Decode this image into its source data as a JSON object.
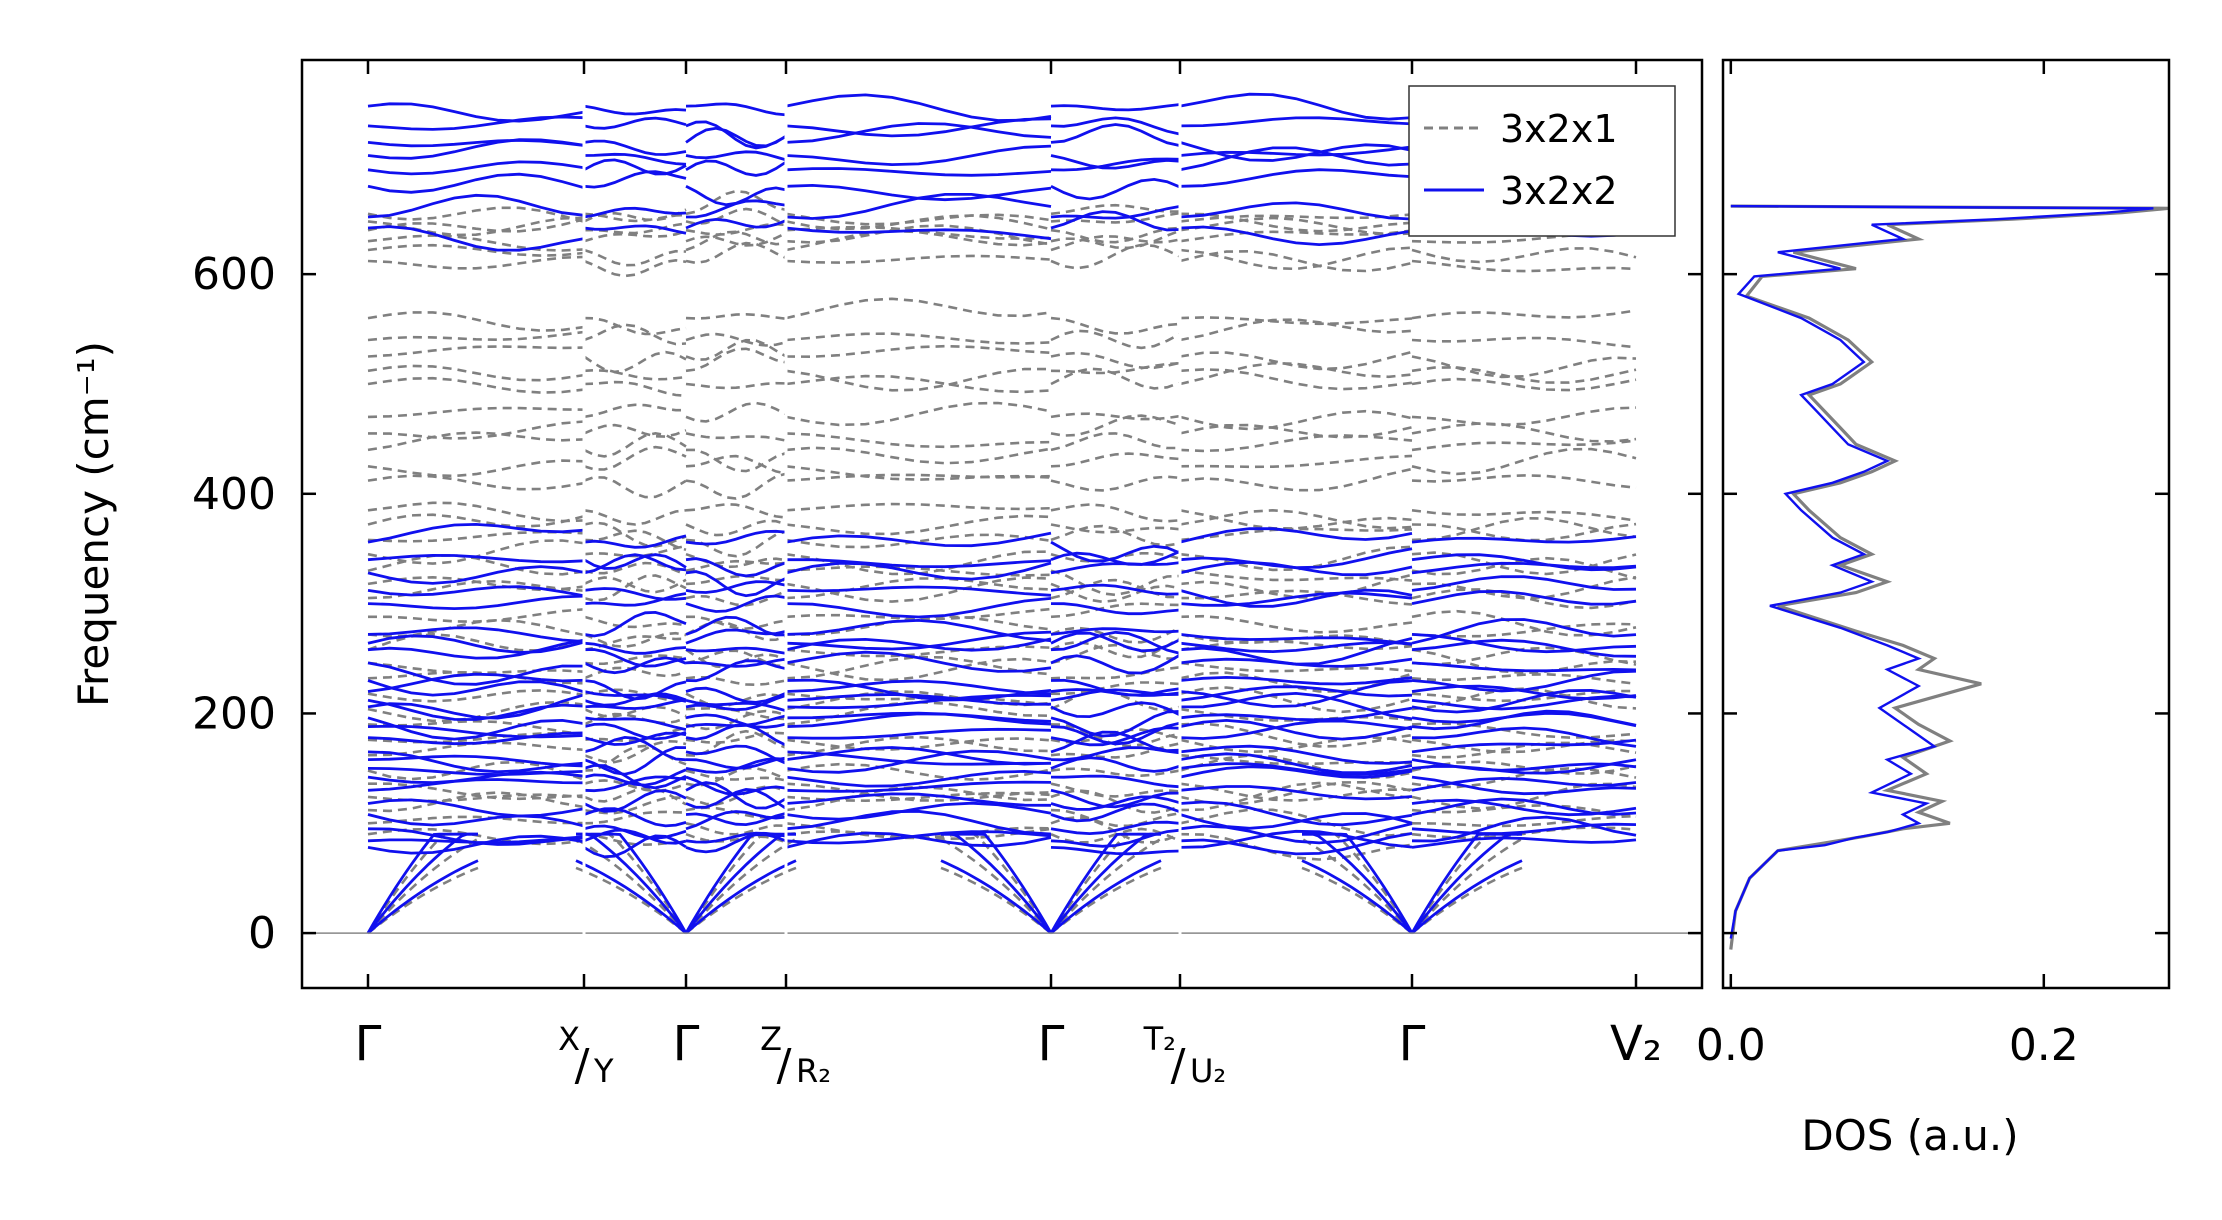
{
  "chart_data": [
    {
      "type": "line",
      "panel": "band-structure",
      "ylabel": "Frequency (cm⁻¹)",
      "ylim": [
        -50,
        795
      ],
      "yticks": [
        0,
        200,
        400,
        600
      ],
      "path_segments": [
        {
          "start": "Γ",
          "end": "X"
        },
        {
          "start": "Y",
          "end": "Γ"
        },
        {
          "start": "Γ",
          "end": "Z"
        },
        {
          "start": "R₂",
          "end": "Γ"
        },
        {
          "start": "Γ",
          "end": "T₂"
        },
        {
          "start": "U₂",
          "end": "Γ"
        },
        {
          "start": "Γ",
          "end": "V₂"
        }
      ],
      "xticks": [
        {
          "label": "Γ"
        },
        {
          "label": "X/Y",
          "top": "X",
          "bottom": "Y"
        },
        {
          "label": "Γ"
        },
        {
          "label": "Z/R₂",
          "top": "Z",
          "bottom": "R₂"
        },
        {
          "label": "Γ"
        },
        {
          "label": "T₂/U₂",
          "top": "T₂",
          "bottom": "U₂"
        },
        {
          "label": "Γ"
        },
        {
          "label": "V₂"
        }
      ],
      "legend": {
        "placement": "top-right",
        "entries": [
          {
            "name": "3x2x1",
            "style": "dashed",
            "color": "#808080"
          },
          {
            "name": "3x2x2",
            "style": "solid",
            "color": "#1010ee"
          }
        ]
      },
      "zero_line": 0,
      "series": [
        {
          "name": "3x2x1",
          "color": "#808080",
          "acoustic_gamma_slopes": [
            0.9,
            1.3,
            1.8
          ],
          "optical_levels_at_gamma": [
            90,
            100,
            112,
            124,
            136,
            148,
            162,
            176,
            190,
            204,
            218,
            232,
            246,
            258,
            272,
            288,
            305,
            318,
            330,
            345,
            358,
            372,
            385,
            412,
            425,
            440,
            455,
            470,
            500,
            512,
            525,
            540,
            560,
            612,
            622,
            630,
            640,
            648,
            655
          ]
        },
        {
          "name": "3x2x2",
          "color": "#1010ee",
          "acoustic_gamma_slopes": [
            1.0,
            1.5,
            2.0
          ],
          "optical_levels_at_gamma": [
            78,
            84,
            95,
            108,
            118,
            130,
            142,
            150,
            158,
            165,
            178,
            188,
            196,
            206,
            212,
            220,
            230,
            246,
            258,
            264,
            272,
            300,
            312,
            328,
            340,
            356,
            642,
            652,
            680,
            695,
            708,
            720,
            735,
            753
          ]
        }
      ]
    },
    {
      "type": "line",
      "panel": "density-of-states",
      "xlabel": "DOS (a.u.)",
      "xlim": [
        -0.005,
        0.28
      ],
      "xticks": [
        0.0,
        0.2
      ],
      "xtick_labels": [
        "0.0",
        "0.2"
      ],
      "ylim": [
        -50,
        795
      ],
      "series": [
        {
          "name": "3x2x1",
          "color": "#808080",
          "points": [
            [
              0.0,
              -15
            ],
            [
              0.003,
              20
            ],
            [
              0.012,
              50
            ],
            [
              0.03,
              75
            ],
            [
              0.06,
              82
            ],
            [
              0.085,
              88
            ],
            [
              0.11,
              95
            ],
            [
              0.14,
              100
            ],
            [
              0.12,
              110
            ],
            [
              0.135,
              120
            ],
            [
              0.1,
              130
            ],
            [
              0.125,
              145
            ],
            [
              0.11,
              160
            ],
            [
              0.14,
              175
            ],
            [
              0.12,
              190
            ],
            [
              0.105,
              205
            ],
            [
              0.16,
              227
            ],
            [
              0.12,
              240
            ],
            [
              0.13,
              250
            ],
            [
              0.11,
              262
            ],
            [
              0.08,
              275
            ],
            [
              0.03,
              298
            ],
            [
              0.08,
              310
            ],
            [
              0.1,
              320
            ],
            [
              0.07,
              335
            ],
            [
              0.09,
              345
            ],
            [
              0.07,
              360
            ],
            [
              0.05,
              385
            ],
            [
              0.04,
              400
            ],
            [
              0.07,
              410
            ],
            [
              0.09,
              420
            ],
            [
              0.105,
              430
            ],
            [
              0.08,
              445
            ],
            [
              0.07,
              460
            ],
            [
              0.06,
              475
            ],
            [
              0.05,
              490
            ],
            [
              0.07,
              500
            ],
            [
              0.09,
              520
            ],
            [
              0.075,
              540
            ],
            [
              0.05,
              560
            ],
            [
              0.01,
              580
            ],
            [
              0.02,
              598
            ],
            [
              0.08,
              605
            ],
            [
              0.04,
              620
            ],
            [
              0.12,
              632
            ],
            [
              0.1,
              645
            ],
            [
              0.18,
              650
            ],
            [
              0.25,
              656
            ],
            [
              0.28,
              660
            ],
            [
              0.0,
              662
            ]
          ]
        },
        {
          "name": "3x2x2",
          "color": "#1010ee",
          "points": [
            [
              0.0,
              -5
            ],
            [
              0.003,
              20
            ],
            [
              0.012,
              50
            ],
            [
              0.03,
              75
            ],
            [
              0.06,
              80
            ],
            [
              0.08,
              87
            ],
            [
              0.1,
              92
            ],
            [
              0.12,
              100
            ],
            [
              0.11,
              108
            ],
            [
              0.125,
              118
            ],
            [
              0.09,
              128
            ],
            [
              0.115,
              145
            ],
            [
              0.1,
              158
            ],
            [
              0.13,
              170
            ],
            [
              0.115,
              185
            ],
            [
              0.095,
              205
            ],
            [
              0.12,
              225
            ],
            [
              0.1,
              240
            ],
            [
              0.12,
              250
            ],
            [
              0.1,
              262
            ],
            [
              0.07,
              278
            ],
            [
              0.025,
              298
            ],
            [
              0.07,
              310
            ],
            [
              0.09,
              320
            ],
            [
              0.065,
              335
            ],
            [
              0.085,
              345
            ],
            [
              0.065,
              360
            ],
            [
              0.045,
              385
            ],
            [
              0.035,
              400
            ],
            [
              0.065,
              410
            ],
            [
              0.085,
              420
            ],
            [
              0.1,
              430
            ],
            [
              0.075,
              445
            ],
            [
              0.065,
              460
            ],
            [
              0.055,
              475
            ],
            [
              0.045,
              490
            ],
            [
              0.065,
              500
            ],
            [
              0.085,
              520
            ],
            [
              0.07,
              540
            ],
            [
              0.045,
              560
            ],
            [
              0.005,
              582
            ],
            [
              0.015,
              598
            ],
            [
              0.07,
              605
            ],
            [
              0.03,
              620
            ],
            [
              0.11,
              632
            ],
            [
              0.09,
              645
            ],
            [
              0.17,
              650
            ],
            [
              0.24,
              656
            ],
            [
              0.27,
              660
            ],
            [
              0.0,
              662
            ]
          ]
        }
      ]
    }
  ]
}
